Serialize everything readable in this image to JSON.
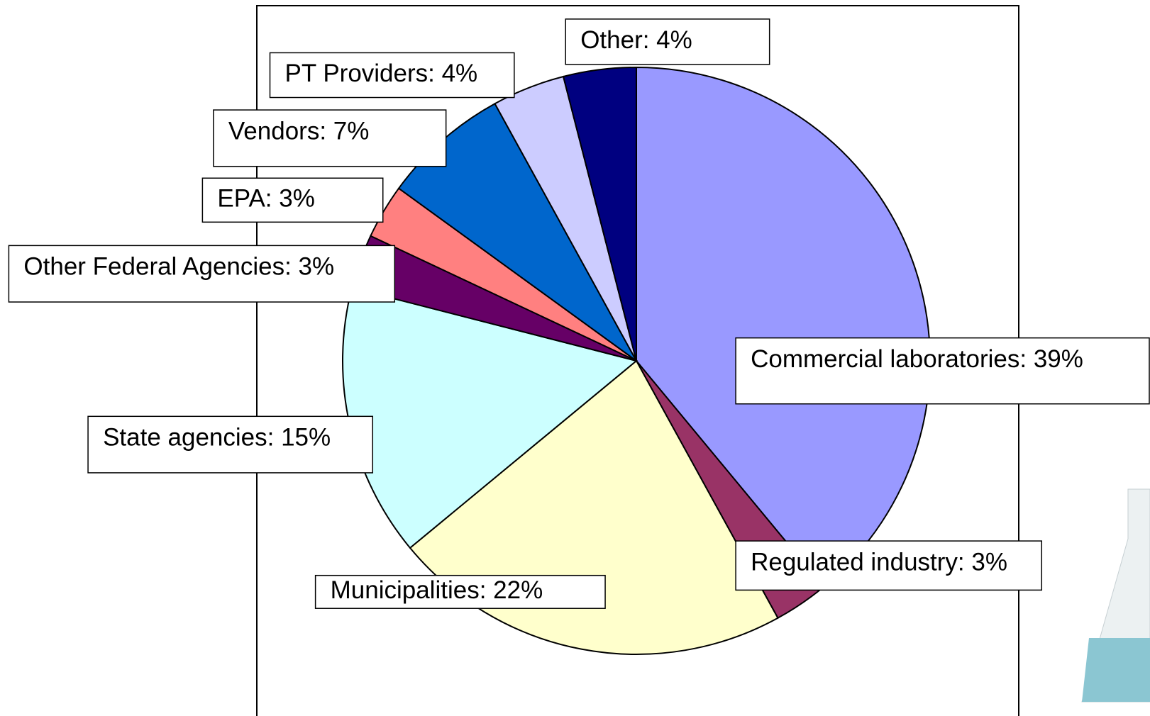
{
  "chart_data": {
    "type": "pie",
    "values": [
      39,
      3,
      22,
      15,
      3,
      3,
      7,
      4,
      4
    ],
    "value_labels": [
      "Commercial laboratories: 39%",
      "Regulated industry: 3%",
      "Municipalities: 22%",
      "State agencies: 15%",
      "Other Federal Agencies: 3%",
      "EPA: 3%",
      "Vendors: 7%",
      "PT Providers: 4%",
      "Other: 4%"
    ],
    "colors": [
      "#9999ff",
      "#993366",
      "#ffffcc",
      "#ccffff",
      "#660066",
      "#ff8080",
      "#0066cc",
      "#ccccff",
      "#000080"
    ]
  }
}
